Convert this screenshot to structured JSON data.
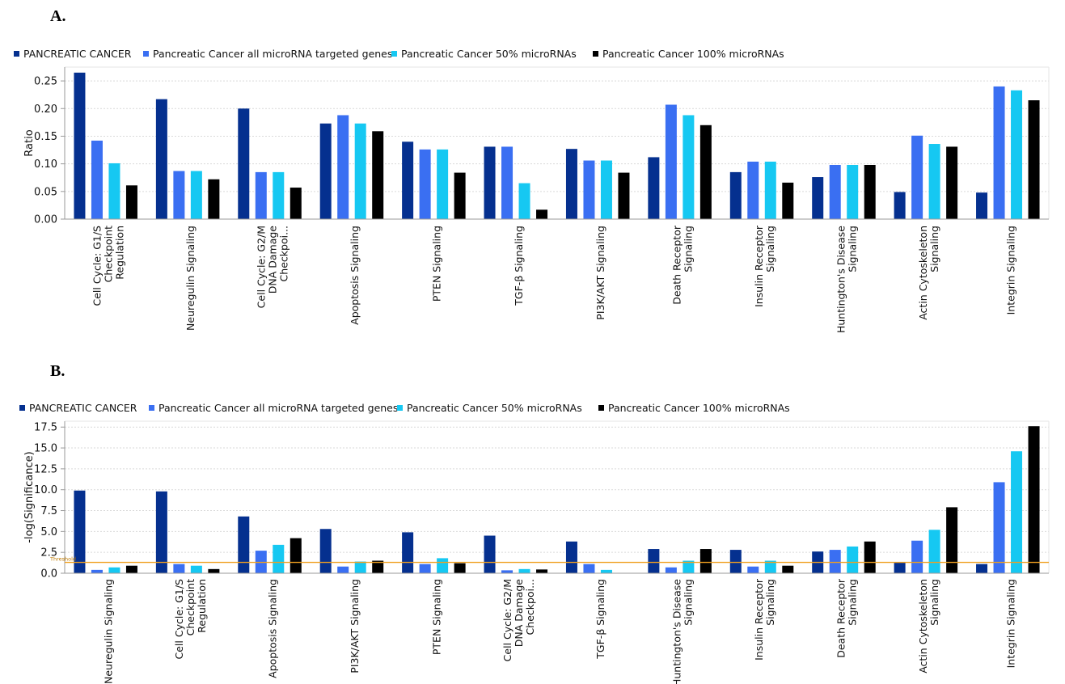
{
  "panels": [
    {
      "label": "A."
    },
    {
      "label": "B."
    }
  ],
  "colors": {
    "series": [
      "#05308f",
      "#3a6ff2",
      "#16c8f2",
      "#000000"
    ],
    "threshold": "#f0a020",
    "grid": "#d9d9d9",
    "axis": "#999999"
  },
  "chart_data": [
    {
      "type": "bar",
      "legend": "top-left",
      "grid": true,
      "ylabel": "Ratio",
      "ylim": [
        0,
        0.275
      ],
      "yticks": [
        "0.00",
        "0.05",
        "0.10",
        "0.15",
        "0.20",
        "0.25"
      ],
      "ytick_values": [
        0,
        0.05,
        0.1,
        0.15,
        0.2,
        0.25
      ],
      "categories": [
        [
          "Cell Cycle: G1/S",
          "Checkpoint",
          "Regulation"
        ],
        [
          "Neuregulin Signaling"
        ],
        [
          "Cell Cycle: G2/M",
          "DNA Damage",
          "Checkpoi..."
        ],
        [
          "Apoptosis Signaling"
        ],
        [
          "PTEN Signaling"
        ],
        [
          "TGF-β Signaling"
        ],
        [
          "PI3K/AKT Signaling"
        ],
        [
          "Death Receptor",
          "Signaling"
        ],
        [
          "Insulin Receptor",
          "Signaling"
        ],
        [
          "Huntington's Disease",
          "Signaling"
        ],
        [
          "Actin Cytoskeleton",
          "Signaling"
        ],
        [
          "Integrin Signaling"
        ]
      ],
      "series": [
        {
          "name": "PANCREATIC CANCER",
          "values": [
            0.265,
            0.217,
            0.2,
            0.173,
            0.14,
            0.131,
            0.127,
            0.112,
            0.085,
            0.076,
            0.049,
            0.048
          ]
        },
        {
          "name": "Pancreatic Cancer all microRNA targeted genes",
          "values": [
            0.142,
            0.087,
            0.085,
            0.188,
            0.126,
            0.131,
            0.106,
            0.207,
            0.104,
            0.098,
            0.151,
            0.24
          ]
        },
        {
          "name": "Pancreatic Cancer 50% microRNAs",
          "values": [
            0.101,
            0.087,
            0.085,
            0.173,
            0.126,
            0.065,
            0.106,
            0.188,
            0.104,
            0.098,
            0.136,
            0.233
          ]
        },
        {
          "name": "Pancreatic Cancer 100% microRNAs",
          "values": [
            0.061,
            0.072,
            0.057,
            0.159,
            0.084,
            0.017,
            0.084,
            0.17,
            0.066,
            0.098,
            0.131,
            0.215
          ]
        }
      ]
    },
    {
      "type": "bar",
      "legend": "top-left",
      "grid": true,
      "ylabel": "-log(Significance)",
      "ylim": [
        0,
        18.2
      ],
      "yticks": [
        "0.0",
        "2.5",
        "5.0",
        "7.5",
        "10.0",
        "12.5",
        "15.0",
        "17.5"
      ],
      "ytick_values": [
        0,
        2.5,
        5,
        7.5,
        10,
        12.5,
        15,
        17.5
      ],
      "threshold": {
        "label": "Threshold",
        "value": 1.3
      },
      "categories": [
        [
          "Neuregulin Signaling"
        ],
        [
          "Cell Cycle: G1/S",
          "Checkpoint",
          "Regulation"
        ],
        [
          "Apoptosis Signaling"
        ],
        [
          "PI3K/AKT Signaling"
        ],
        [
          "PTEN Signaling"
        ],
        [
          "Cell Cycle: G2/M",
          "DNA Damage",
          "Checkpoi..."
        ],
        [
          "TGF-β Signaling"
        ],
        [
          "Huntington's Disease",
          "Signaling"
        ],
        [
          "Insulin Receptor",
          "Signaling"
        ],
        [
          "Death Receptor",
          "Signaling"
        ],
        [
          "Actin Cytoskeleton",
          "Signaling"
        ],
        [
          "Integrin Signaling"
        ]
      ],
      "series": [
        {
          "name": "PANCREATIC CANCER",
          "values": [
            9.9,
            9.8,
            6.8,
            5.3,
            4.9,
            4.5,
            3.8,
            2.9,
            2.8,
            2.6,
            1.3,
            1.1
          ]
        },
        {
          "name": "Pancreatic Cancer all microRNA targeted genes",
          "values": [
            0.4,
            1.1,
            2.7,
            0.8,
            1.1,
            0.35,
            1.1,
            0.7,
            0.8,
            2.8,
            3.9,
            10.9
          ]
        },
        {
          "name": "Pancreatic Cancer 50% microRNAs",
          "values": [
            0.7,
            0.9,
            3.4,
            1.4,
            1.8,
            0.5,
            0.4,
            1.5,
            1.5,
            3.2,
            5.2,
            14.6
          ]
        },
        {
          "name": "Pancreatic Cancer 100% microRNAs",
          "values": [
            0.9,
            0.5,
            4.2,
            1.5,
            1.2,
            0.45,
            0.0,
            2.9,
            0.9,
            3.8,
            7.9,
            17.6
          ]
        }
      ]
    }
  ]
}
